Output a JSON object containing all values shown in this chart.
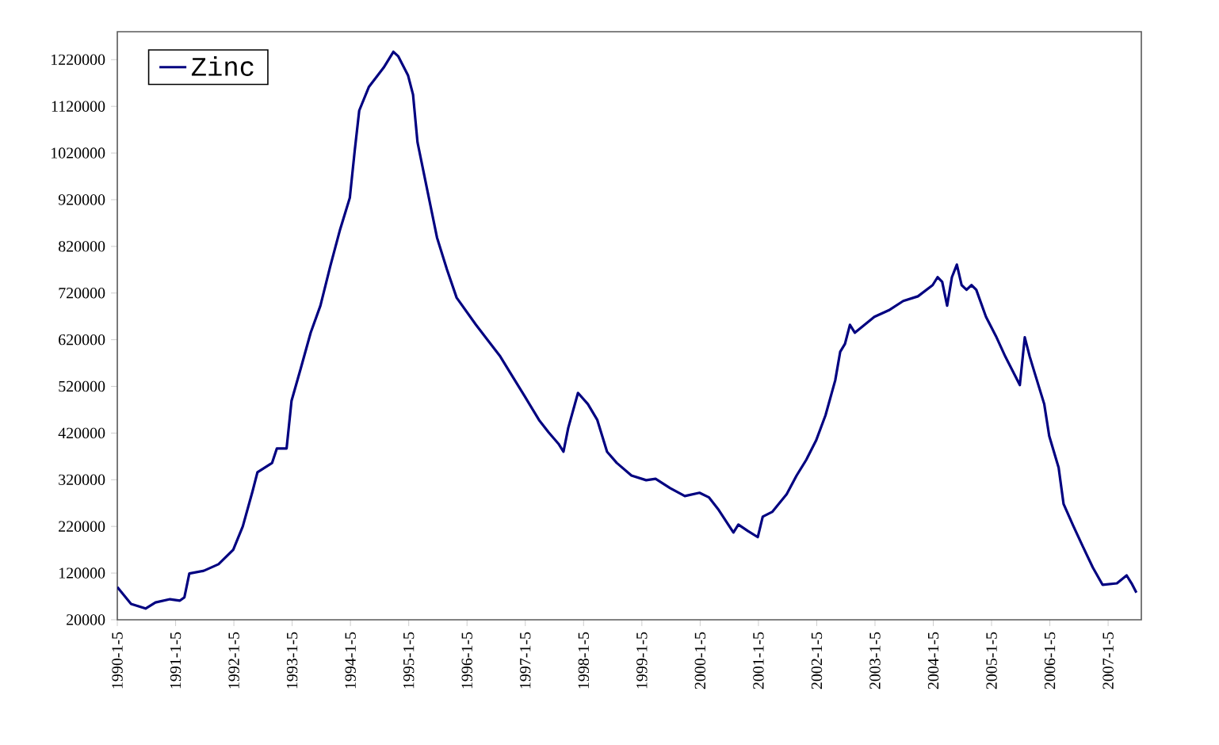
{
  "chart_data": {
    "type": "line",
    "x": [
      "1990-01-05",
      "1990-04",
      "1990-07",
      "1990-09",
      "1990-12",
      "1991-02",
      "1991-03",
      "1991-04",
      "1991-07",
      "1991-10",
      "1992-01",
      "1992-03",
      "1992-05",
      "1992-06",
      "1992-09",
      "1992-10",
      "1992-12",
      "1993-01",
      "1993-03",
      "1993-05",
      "1993-07",
      "1993-09",
      "1993-11",
      "1994-01",
      "1994-02",
      "1994-03",
      "1994-05",
      "1994-08",
      "1994-10",
      "1994-11",
      "1995-01",
      "1995-02",
      "1995-03",
      "1995-05",
      "1995-07",
      "1995-09",
      "1995-11",
      "1996-03",
      "1996-05",
      "1996-08",
      "1996-10",
      "1997-01",
      "1997-04",
      "1997-06",
      "1997-08",
      "1997-09",
      "1997-10",
      "1997-12",
      "1998-02",
      "1998-04",
      "1998-06",
      "1998-08",
      "1998-11",
      "1999-02",
      "1999-04",
      "1999-07",
      "1999-10",
      "2000-01",
      "2000-03",
      "2000-05",
      "2000-08",
      "2000-09",
      "2000-11",
      "2001-01",
      "2001-02",
      "2001-04",
      "2001-07",
      "2001-09",
      "2001-11",
      "2002-01",
      "2002-03",
      "2002-05",
      "2002-06",
      "2002-07",
      "2002-08",
      "2002-09",
      "2002-11",
      "2003-01",
      "2003-04",
      "2003-07",
      "2003-10",
      "2004-01",
      "2004-02",
      "2004-03",
      "2004-04",
      "2004-05",
      "2004-06",
      "2004-07",
      "2004-08",
      "2004-09",
      "2004-10",
      "2004-12",
      "2005-02",
      "2005-04",
      "2005-07",
      "2005-08",
      "2005-09",
      "2005-10",
      "2005-12",
      "2006-01",
      "2006-03",
      "2006-04",
      "2006-06",
      "2006-08",
      "2006-10",
      "2006-12",
      "2007-03",
      "2007-05",
      "2007-06",
      "2007-07"
    ],
    "series": [
      {
        "name": "Zinc",
        "color": "#000080",
        "values": [
          90000,
          54000,
          44000,
          57000,
          64000,
          61000,
          68000,
          119000,
          125000,
          139000,
          170000,
          220000,
          295000,
          336000,
          356000,
          387000,
          387000,
          489000,
          560000,
          635000,
          693000,
          778000,
          856000,
          924000,
          1026000,
          1111000,
          1162000,
          1203000,
          1237000,
          1227000,
          1186000,
          1145000,
          1043000,
          941000,
          839000,
          771000,
          710000,
          652000,
          625000,
          584000,
          550000,
          499000,
          448000,
          421000,
          397000,
          380000,
          431000,
          506000,
          482000,
          448000,
          380000,
          356000,
          329000,
          319000,
          322000,
          302000,
          285000,
          292000,
          282000,
          255000,
          207000,
          224000,
          210000,
          197000,
          241000,
          251000,
          289000,
          329000,
          363000,
          404000,
          458000,
          533000,
          594000,
          611000,
          652000,
          635000,
          652000,
          669000,
          683000,
          703000,
          713000,
          737000,
          754000,
          744000,
          693000,
          754000,
          781000,
          737000,
          727000,
          737000,
          727000,
          669000,
          628000,
          584000,
          523000,
          625000,
          584000,
          550000,
          482000,
          414000,
          346000,
          268000,
          221000,
          176000,
          132000,
          95000,
          98000,
          115000,
          98000,
          78000
        ]
      }
    ],
    "xlim": [
      "1990-01-05",
      "2007-08-01"
    ],
    "xticks": [
      {
        "value": "1990-01-05",
        "label": "1990-1-5"
      },
      {
        "value": "1991-01-05",
        "label": "1991-1-5"
      },
      {
        "value": "1992-01-05",
        "label": "1992-1-5"
      },
      {
        "value": "1993-01-05",
        "label": "1993-1-5"
      },
      {
        "value": "1994-01-05",
        "label": "1994-1-5"
      },
      {
        "value": "1995-01-05",
        "label": "1995-1-5"
      },
      {
        "value": "1996-01-05",
        "label": "1996-1-5"
      },
      {
        "value": "1997-01-05",
        "label": "1997-1-5"
      },
      {
        "value": "1998-01-05",
        "label": "1998-1-5"
      },
      {
        "value": "1999-01-05",
        "label": "1999-1-5"
      },
      {
        "value": "2000-01-05",
        "label": "2000-1-5"
      },
      {
        "value": "2001-01-05",
        "label": "2001-1-5"
      },
      {
        "value": "2002-01-05",
        "label": "2002-1-5"
      },
      {
        "value": "2003-01-05",
        "label": "2003-1-5"
      },
      {
        "value": "2004-01-05",
        "label": "2004-1-5"
      },
      {
        "value": "2005-01-05",
        "label": "2005-1-5"
      },
      {
        "value": "2006-01-05",
        "label": "2006-1-5"
      },
      {
        "value": "2007-01-05",
        "label": "2007-1-5"
      }
    ],
    "ylim": [
      20000,
      1280000
    ],
    "yticks": [
      20000,
      120000,
      220000,
      320000,
      420000,
      520000,
      620000,
      720000,
      820000,
      920000,
      1020000,
      1120000,
      1220000
    ],
    "legend": "top left",
    "grid": false,
    "marker": "none",
    "line_style": "solid"
  }
}
